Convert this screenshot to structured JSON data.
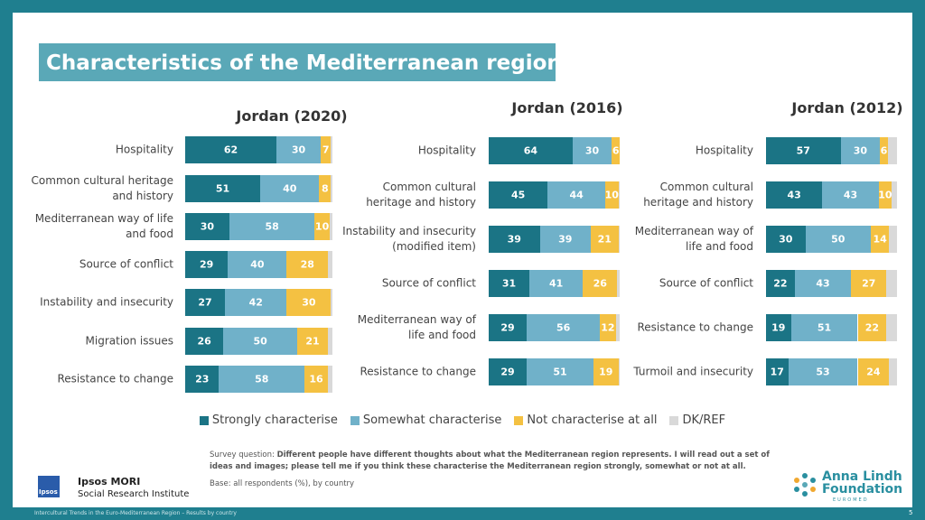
{
  "header": {
    "title": "Characteristics of the Mediterranean region"
  },
  "chart_data": {
    "type": "bar",
    "orientation": "horizontal",
    "stacked": true,
    "xlim": [
      0,
      100
    ],
    "series": [
      {
        "name": "Strongly characterise",
        "color": "#1b7485",
        "labels": true
      },
      {
        "name": "Somewhat characterise",
        "color": "#70b1c9",
        "labels": true
      },
      {
        "name": "Not characterise at all",
        "color": "#f4c142",
        "labels": true
      },
      {
        "name": "DK/REF",
        "color": "#d9d9d9",
        "labels": false
      }
    ],
    "panels": [
      {
        "title": "Jordan (2020)",
        "categories": [
          "Hospitality",
          "Common cultural heritage and history",
          "Mediterranean way of life and food",
          "Source of conflict",
          "Instability and insecurity",
          "Migration issues",
          "Resistance to change"
        ],
        "series": [
          {
            "values": [
              62,
              51,
              30,
              29,
              27,
              26,
              23
            ]
          },
          {
            "values": [
              30,
              40,
              58,
              40,
              42,
              50,
              58
            ]
          },
          {
            "values": [
              7,
              8,
              10,
              28,
              30,
              21,
              16
            ]
          },
          {
            "values": [
              1,
              1,
              2,
              3,
              1,
              3,
              3
            ]
          }
        ]
      },
      {
        "title": "Jordan (2016)",
        "categories": [
          "Hospitality",
          "Common cultural heritage and history",
          "Instability and insecurity (modified item)",
          "Source of conflict",
          "Mediterranean way of life and food",
          "Resistance to change"
        ],
        "series": [
          {
            "values": [
              64,
              45,
              39,
              31,
              29,
              29
            ]
          },
          {
            "values": [
              30,
              44,
              39,
              41,
              56,
              51
            ]
          },
          {
            "values": [
              6,
              10,
              21,
              26,
              12,
              19
            ]
          },
          {
            "values": [
              0,
              1,
              1,
              2,
              3,
              1
            ]
          }
        ]
      },
      {
        "title": "Jordan (2012)",
        "categories": [
          "Hospitality",
          "Common cultural heritage and history",
          "Mediterranean way of life and food",
          "Source of conflict",
          "Resistance to change",
          "Turmoil and insecurity"
        ],
        "series": [
          {
            "values": [
              57,
              43,
              30,
              22,
              19,
              17
            ]
          },
          {
            "values": [
              30,
              43,
              50,
              43,
              51,
              53
            ]
          },
          {
            "values": [
              6,
              10,
              14,
              27,
              22,
              24
            ]
          },
          {
            "values": [
              7,
              4,
              6,
              8,
              8,
              6
            ]
          }
        ]
      }
    ]
  },
  "survey": {
    "label": "Survey question:",
    "question": "Different people have different thoughts about what the Mediterranean region represents. I will read out a set of ideas and images; please tell me if you think these characterise the Mediterranean region strongly, somewhat or not at all.",
    "base": "Base: all respondents (%), by country"
  },
  "logos": {
    "ipsos_mark": "Ipsos",
    "ipsos_name": "Ipsos MORI",
    "ipsos_sub": "Social Research Institute",
    "alf_line1": "Anna Lindh",
    "alf_line2": "Foundation",
    "alf_line3": "EUROMED"
  },
  "footer": {
    "text": "Intercultural Trends in the Euro-Mediterranean Region – Results by country",
    "page": "5"
  }
}
